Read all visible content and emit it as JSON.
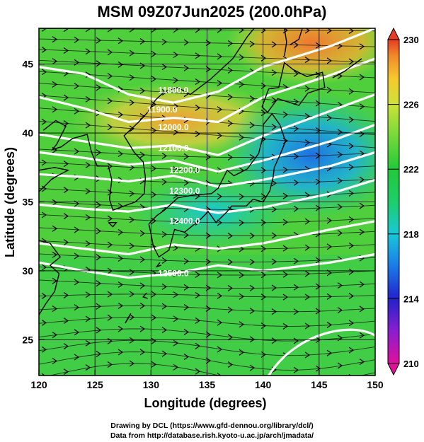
{
  "title": "MSM 09Z07Jun2025 (200.0hPa)",
  "x_axis": {
    "label": "Longitude (degrees)",
    "range": [
      120,
      150
    ],
    "ticks": [
      "120",
      "125",
      "130",
      "135",
      "140",
      "145",
      "150"
    ]
  },
  "y_axis": {
    "label": "Latitude  (degrees)",
    "range": [
      22.4,
      47.6
    ],
    "ticks": [
      "25",
      "30",
      "35",
      "40",
      "45"
    ]
  },
  "colorbar": {
    "min": 210,
    "max": 230,
    "ticks": [
      "230",
      "226",
      "222",
      "218",
      "214",
      "210"
    ],
    "colors": [
      "#e0109a",
      "#8a1ed0",
      "#2222cc",
      "#1a7ae8",
      "#18c8d8",
      "#1ccf6a",
      "#22c93a",
      "#74d93a",
      "#cde23a",
      "#f6c92c",
      "#f08a2a",
      "#e63c22"
    ]
  },
  "contours": [
    {
      "label": "11800.0",
      "level": 11800
    },
    {
      "label": "11900.0",
      "level": 11900
    },
    {
      "label": "12000.0",
      "level": 12000
    },
    {
      "label": "12100.0",
      "level": 12100
    },
    {
      "label": "12200.0",
      "level": 12200
    },
    {
      "label": "12300.0",
      "level": 12300
    },
    {
      "label": "12400.0",
      "level": 12400
    },
    {
      "label": "12500.0",
      "level": 12500
    }
  ],
  "credits": {
    "line1": "Drawing by DCL (https://www.gfd-dennou.org/library/dcl/)",
    "line2": "Data from http://database.rish.kyoto-u.ac.jp/arch/jmadata/"
  }
}
